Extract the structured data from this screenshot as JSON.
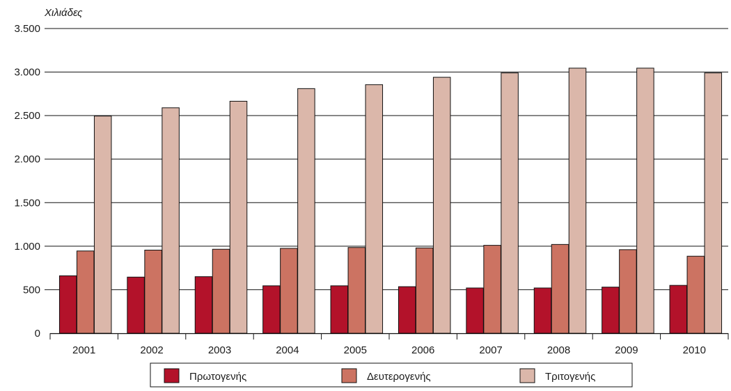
{
  "chart_data": {
    "type": "bar",
    "unit_label": "Χιλιάδες",
    "categories": [
      "2001",
      "2002",
      "2003",
      "2004",
      "2005",
      "2006",
      "2007",
      "2008",
      "2009",
      "2010"
    ],
    "series": [
      {
        "name": "Πρωτογενής",
        "color": "#b3122a",
        "values": [
          660,
          645,
          650,
          545,
          545,
          535,
          520,
          520,
          530,
          550
        ]
      },
      {
        "name": "Δευτερογενής",
        "color": "#cc7362",
        "values": [
          945,
          955,
          965,
          975,
          985,
          980,
          1010,
          1020,
          960,
          885
        ]
      },
      {
        "name": "Τριτογενής",
        "color": "#dbb7aa",
        "values": [
          2495,
          2590,
          2665,
          2810,
          2855,
          2940,
          2990,
          3045,
          3045,
          2990
        ]
      }
    ],
    "ylim": [
      0,
      3500
    ],
    "yticks": [
      0,
      500,
      1000,
      1500,
      2000,
      2500,
      3000,
      3500
    ],
    "ytick_labels": [
      "0",
      "500",
      "1.000",
      "1.500",
      "2.000",
      "2.500",
      "3.000",
      "3.500"
    ],
    "grid": true,
    "legend_position": "bottom-center"
  }
}
